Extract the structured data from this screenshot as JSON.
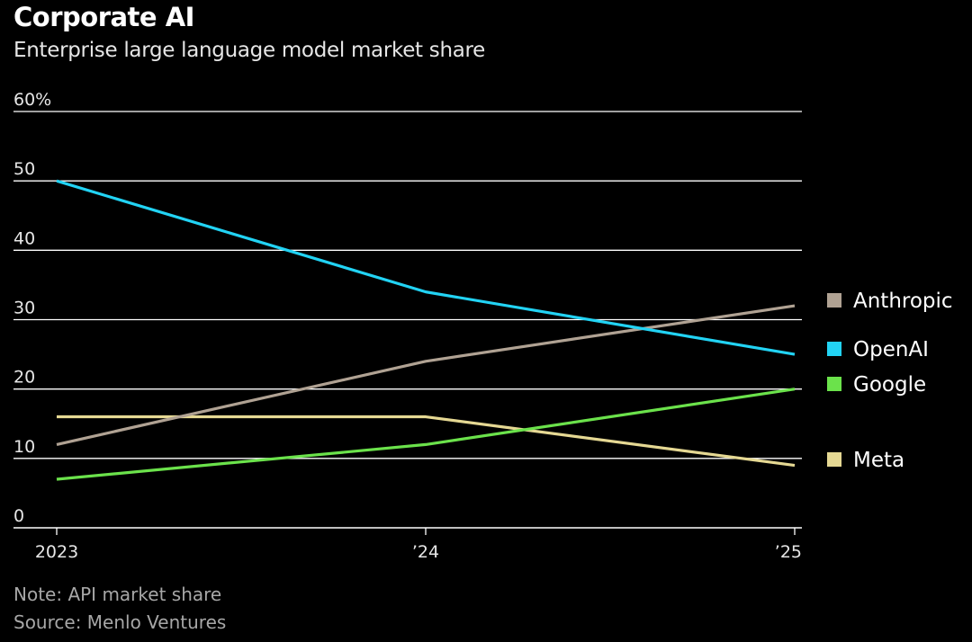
{
  "chart_data": {
    "type": "line",
    "title": "Corporate AI",
    "subtitle": "Enterprise large language model market share",
    "x": [
      "2023",
      "’24",
      "’25"
    ],
    "ylim": [
      0,
      60
    ],
    "yticks": [
      {
        "value": 60,
        "label": "60%"
      },
      {
        "value": 50,
        "label": "50"
      },
      {
        "value": 40,
        "label": "40"
      },
      {
        "value": 30,
        "label": "30"
      },
      {
        "value": 20,
        "label": "20"
      },
      {
        "value": 10,
        "label": "10"
      },
      {
        "value": 0,
        "label": "0"
      }
    ],
    "grid": true,
    "legend_position": "right",
    "series": [
      {
        "name": "Anthropic",
        "color": "#b0a293",
        "values": [
          12,
          24,
          32
        ]
      },
      {
        "name": "OpenAI",
        "color": "#22d3f4",
        "values": [
          50,
          34,
          25
        ]
      },
      {
        "name": "Google",
        "color": "#6be24b",
        "values": [
          7,
          12,
          20
        ]
      },
      {
        "name": "Meta",
        "color": "#e5d893",
        "values": [
          16,
          16,
          9
        ]
      }
    ],
    "note": "Note: API market share",
    "source": "Source: Menlo Ventures"
  }
}
